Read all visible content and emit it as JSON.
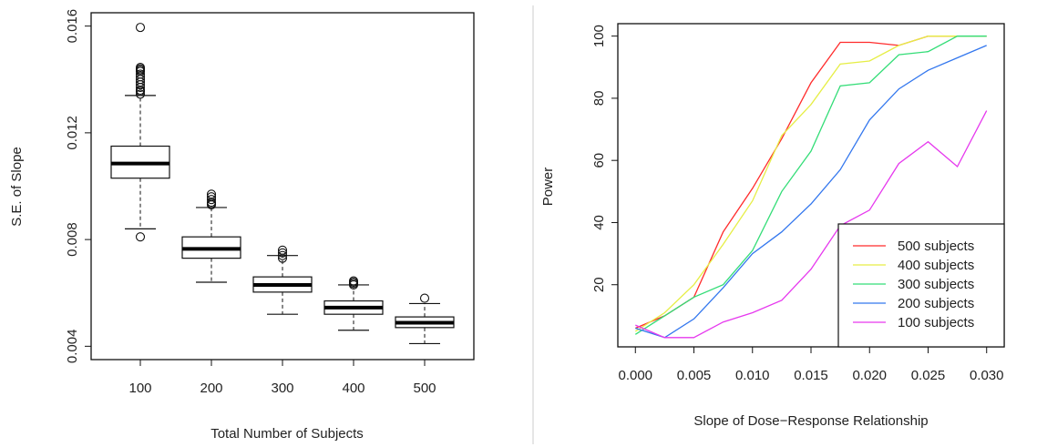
{
  "chart_data": [
    {
      "type": "box",
      "xlabel": "Total Number of Subjects",
      "ylabel": "S.E. of Slope",
      "ylim": [
        0.0035,
        0.0165
      ],
      "yticks": [
        "0.004",
        "0.008",
        "0.012",
        "0.016"
      ],
      "ytick_values": [
        0.004,
        0.008,
        0.012,
        0.016
      ],
      "categories": [
        "100",
        "200",
        "300",
        "400",
        "500"
      ],
      "boxes": [
        {
          "whisker_low": 0.0084,
          "q1": 0.0103,
          "median": 0.01085,
          "q3": 0.0115,
          "whisker_high": 0.0134,
          "outliers": [
            0.0081,
            0.01345,
            0.01355,
            0.0136,
            0.0137,
            0.0138,
            0.0139,
            0.014,
            0.0141,
            0.0142,
            0.0143,
            0.01435,
            0.0144,
            0.01445,
            0.01595
          ]
        },
        {
          "whisker_low": 0.0064,
          "q1": 0.0073,
          "median": 0.00765,
          "q3": 0.0081,
          "whisker_high": 0.0092,
          "outliers": [
            0.0093,
            0.00935,
            0.0094,
            0.0095,
            0.0096,
            0.0097
          ]
        },
        {
          "whisker_low": 0.0052,
          "q1": 0.00603,
          "median": 0.0063,
          "q3": 0.0066,
          "whisker_high": 0.0074,
          "outliers": [
            0.0073,
            0.0074,
            0.0075,
            0.0076
          ]
        },
        {
          "whisker_low": 0.0046,
          "q1": 0.0052,
          "median": 0.00545,
          "q3": 0.0057,
          "whisker_high": 0.0063,
          "outliers": [
            0.0063,
            0.00635,
            0.0064,
            0.00645
          ]
        },
        {
          "whisker_low": 0.0041,
          "q1": 0.0047,
          "median": 0.00488,
          "q3": 0.0051,
          "whisker_high": 0.0056,
          "outliers": [
            0.0058
          ]
        }
      ]
    },
    {
      "type": "line",
      "xlabel": "Slope of Dose−Response Relationship",
      "ylabel": "Power",
      "xlim": [
        -0.0015,
        0.0315
      ],
      "ylim": [
        0,
        104
      ],
      "xticks": [
        "0.000",
        "0.005",
        "0.010",
        "0.015",
        "0.020",
        "0.025",
        "0.030"
      ],
      "xtick_values": [
        0.0,
        0.005,
        0.01,
        0.015,
        0.02,
        0.025,
        0.03
      ],
      "yticks": [
        "20",
        "40",
        "60",
        "80",
        "100"
      ],
      "ytick_values": [
        20,
        40,
        60,
        80,
        100
      ],
      "legend_position": "bottom-right",
      "x": [
        0.0,
        0.0025,
        0.005,
        0.0075,
        0.01,
        0.0125,
        0.015,
        0.0175,
        0.02,
        0.0225,
        0.025,
        0.0275,
        0.03
      ],
      "series": [
        {
          "name": "500 subjects",
          "color": "#ff2b2b",
          "values": [
            6,
            10,
            16,
            37,
            51,
            67,
            85,
            98,
            98,
            97,
            100,
            100,
            100
          ]
        },
        {
          "name": "400 subjects",
          "color": "#e6ee45",
          "values": [
            5,
            11,
            20,
            33,
            47,
            68,
            78,
            91,
            92,
            97,
            100,
            100,
            100
          ]
        },
        {
          "name": "300 subjects",
          "color": "#33dd77",
          "values": [
            4,
            10,
            16,
            20,
            31,
            50,
            63,
            84,
            85,
            94,
            95,
            100,
            100
          ]
        },
        {
          "name": "200 subjects",
          "color": "#3377ee",
          "values": [
            6,
            3,
            9,
            19,
            30,
            37,
            46,
            57,
            73,
            83,
            89,
            93,
            97
          ]
        },
        {
          "name": "100 subjects",
          "color": "#e638ee",
          "values": [
            7,
            3,
            3,
            8,
            11,
            15,
            25,
            39,
            44,
            59,
            66,
            58,
            76
          ]
        }
      ]
    }
  ]
}
